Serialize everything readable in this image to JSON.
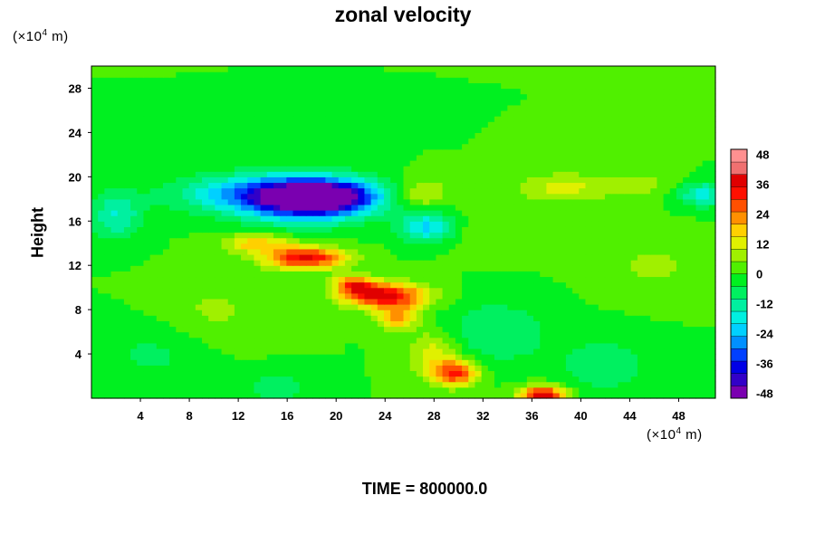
{
  "chart_data": {
    "type": "heatmap",
    "title": "zonal velocity",
    "ylabel": "Height",
    "x_unit_prefix": "(×10",
    "x_unit_exp": "4",
    "x_unit_suffix": " m)",
    "y_unit_prefix": "(×10",
    "y_unit_exp": "4",
    "y_unit_suffix": " m)",
    "xlim": [
      0,
      51
    ],
    "ylim": [
      0,
      30
    ],
    "x_ticks": [
      4,
      8,
      12,
      16,
      20,
      24,
      28,
      32,
      36,
      40,
      44,
      48
    ],
    "y_ticks": [
      4,
      8,
      12,
      16,
      20,
      24,
      28
    ],
    "colorbar": {
      "range": [
        -50,
        50
      ],
      "ticks": [
        48,
        36,
        24,
        12,
        0,
        -12,
        -24,
        -36,
        -48
      ],
      "colors": [
        "#7a00b0",
        "#3200c8",
        "#0000e6",
        "#0040ff",
        "#0090ff",
        "#00d0ff",
        "#00f0e0",
        "#00f0a0",
        "#00f060",
        "#00f020",
        "#50f000",
        "#a0f000",
        "#e0f000",
        "#ffd000",
        "#ff9000",
        "#ff5000",
        "#ff1000",
        "#e00000",
        "#f07070",
        "#ff9090"
      ]
    },
    "background_value": 0,
    "features": [
      {
        "x": 17.5,
        "y": 18.0,
        "sx": 3.5,
        "sy": 1.4,
        "value": -40
      },
      {
        "x": 13.0,
        "y": 18.5,
        "sx": 4.5,
        "sy": 1.2,
        "value": -22
      },
      {
        "x": 20.0,
        "y": 18.3,
        "sx": 3.0,
        "sy": 1.0,
        "value": -25
      },
      {
        "x": 2.0,
        "y": 16.5,
        "sx": 1.5,
        "sy": 1.5,
        "value": -15
      },
      {
        "x": 27.5,
        "y": 15.5,
        "sx": 1.6,
        "sy": 1.0,
        "value": -22
      },
      {
        "x": 50.0,
        "y": 18.5,
        "sx": 1.5,
        "sy": 0.8,
        "value": -18
      },
      {
        "x": 17.5,
        "y": 12.7,
        "sx": 2.3,
        "sy": 0.7,
        "value": 36
      },
      {
        "x": 24.0,
        "y": 9.3,
        "sx": 2.4,
        "sy": 0.8,
        "value": 38
      },
      {
        "x": 21.5,
        "y": 10.3,
        "sx": 1.2,
        "sy": 0.6,
        "value": 25
      },
      {
        "x": 25.0,
        "y": 7.3,
        "sx": 1.2,
        "sy": 0.8,
        "value": 20
      },
      {
        "x": 29.8,
        "y": 2.3,
        "sx": 1.3,
        "sy": 0.8,
        "value": 30
      },
      {
        "x": 36.9,
        "y": 0.3,
        "sx": 1.3,
        "sy": 0.6,
        "value": 40
      },
      {
        "x": 28.0,
        "y": 4.0,
        "sx": 1.5,
        "sy": 1.5,
        "value": 14
      },
      {
        "x": 13.5,
        "y": 14.0,
        "sx": 2.0,
        "sy": 0.6,
        "value": 18
      },
      {
        "x": 27.0,
        "y": 18.5,
        "sx": 1.5,
        "sy": 1.0,
        "value": 12
      },
      {
        "x": 38.0,
        "y": 19.0,
        "sx": 2.5,
        "sy": 1.0,
        "value": 10
      },
      {
        "x": 44.0,
        "y": 19.3,
        "sx": 3.0,
        "sy": 0.8,
        "value": 8
      },
      {
        "x": 33.0,
        "y": 6.0,
        "sx": 3.0,
        "sy": 2.0,
        "value": -10
      },
      {
        "x": 42.0,
        "y": 3.0,
        "sx": 3.0,
        "sy": 2.0,
        "value": -8
      },
      {
        "x": 5.0,
        "y": 4.0,
        "sx": 3.0,
        "sy": 2.0,
        "value": -6
      },
      {
        "x": 10.0,
        "y": 8.0,
        "sx": 3.0,
        "sy": 2.0,
        "value": 6
      },
      {
        "x": 46.0,
        "y": 12.0,
        "sx": 3.0,
        "sy": 2.0,
        "value": 6
      },
      {
        "x": 15.0,
        "y": 1.0,
        "sx": 2.0,
        "sy": 1.0,
        "value": -8
      },
      {
        "x": 33.0,
        "y": 15.0,
        "sx": 3.0,
        "sy": 1.5,
        "value": 5
      }
    ]
  },
  "footer": {
    "time_label": "TIME = 800000.0"
  }
}
